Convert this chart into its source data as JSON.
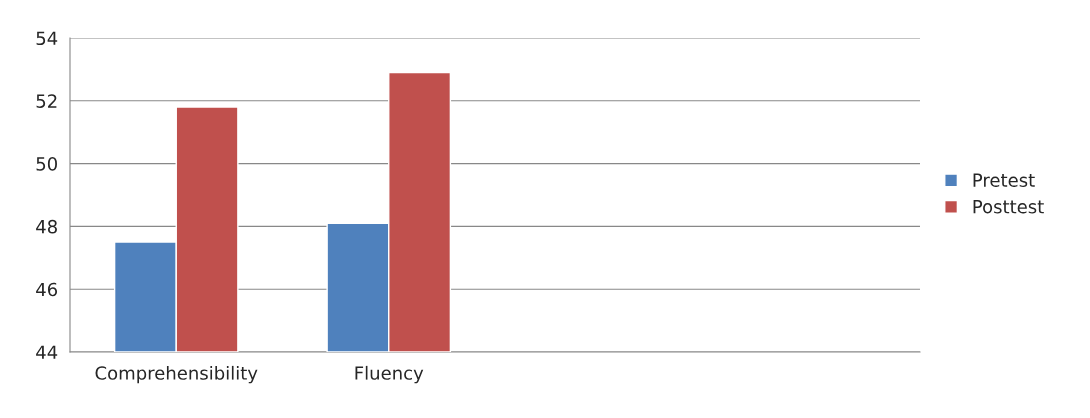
{
  "chart_data": {
    "type": "bar",
    "categories": [
      "Comprehensibility",
      "Fluency",
      null,
      null
    ],
    "series": [
      {
        "name": "Pretest",
        "color": "#4f81bd",
        "values": [
          47.5,
          48.1,
          null,
          null
        ]
      },
      {
        "name": "Posttest",
        "color": "#c0504d",
        "values": [
          51.8,
          52.9,
          null,
          null
        ]
      }
    ],
    "ylim": [
      44,
      54
    ],
    "yticks": [
      44,
      46,
      48,
      50,
      52,
      54
    ],
    "grid": "y",
    "legend": "right"
  }
}
